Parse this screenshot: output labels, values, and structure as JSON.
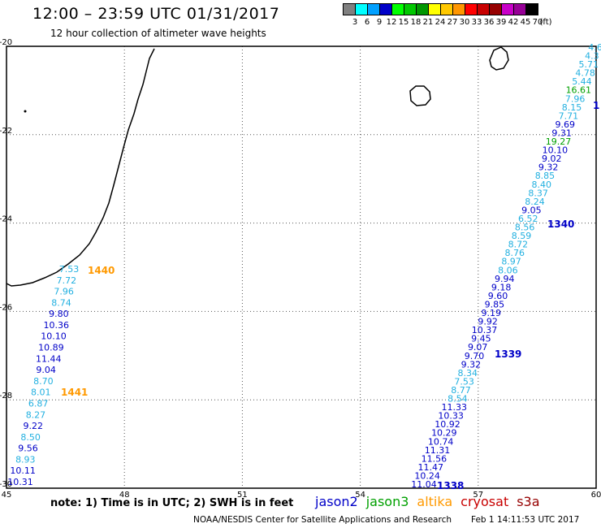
{
  "header": {
    "title": "12:00 – 23:59 UTC 01/31/2017",
    "subtitle": "12 hour collection of altimeter wave heights"
  },
  "legend": {
    "unit": "(ft)",
    "bins": [
      {
        "label": "3",
        "color": "#808080"
      },
      {
        "label": "6",
        "color": "#00ffff"
      },
      {
        "label": "9",
        "color": "#00a0ff"
      },
      {
        "label": "12",
        "color": "#0000c8"
      },
      {
        "label": "15",
        "color": "#00ff00"
      },
      {
        "label": "18",
        "color": "#00c800"
      },
      {
        "label": "21",
        "color": "#009600"
      },
      {
        "label": "24",
        "color": "#ffff00"
      },
      {
        "label": "27",
        "color": "#ffc800"
      },
      {
        "label": "30",
        "color": "#ff9600"
      },
      {
        "label": "33",
        "color": "#ff0000"
      },
      {
        "label": "36",
        "color": "#c80000"
      },
      {
        "label": "39",
        "color": "#960000"
      },
      {
        "label": "42",
        "color": "#c800c8"
      },
      {
        "label": "45",
        "color": "#960096"
      },
      {
        "label": "70",
        "color": "#000000"
      }
    ]
  },
  "axes": {
    "lon_ticks": [
      "45",
      "48",
      "51",
      "54",
      "57",
      "60"
    ],
    "lat_ticks": [
      "-20",
      "-22",
      "-24",
      "-26",
      "-28",
      "-30"
    ],
    "lon_range": [
      45,
      60
    ],
    "lat_range": [
      -20,
      -30
    ]
  },
  "colors": {
    "jason2": "#0000c8",
    "jason3": "#00a000",
    "altika": "#ff9900",
    "cryosat": "#c80000",
    "s3a": "#960000",
    "light": "#22b0e0",
    "coast": "#000000"
  },
  "tracks": {
    "left": {
      "labels": [
        {
          "text": "7.53",
          "c": "light"
        },
        {
          "text": "7.72",
          "c": "light"
        },
        {
          "text": "7.96",
          "c": "light"
        },
        {
          "text": "8.74",
          "c": "light"
        },
        {
          "text": "9.80",
          "c": "jason2"
        },
        {
          "text": "10.36",
          "c": "jason2"
        },
        {
          "text": "10.10",
          "c": "jason2"
        },
        {
          "text": "10.89",
          "c": "jason2"
        },
        {
          "text": "11.44",
          "c": "jason2"
        },
        {
          "text": "9.04",
          "c": "jason2"
        },
        {
          "text": "8.70",
          "c": "light"
        },
        {
          "text": "8.01",
          "c": "light"
        },
        {
          "text": "6.87",
          "c": "light"
        },
        {
          "text": "8.27",
          "c": "light"
        },
        {
          "text": "9.22",
          "c": "jason2"
        },
        {
          "text": "8.50",
          "c": "light"
        },
        {
          "text": "9.56",
          "c": "jason2"
        },
        {
          "text": "8.93",
          "c": "light"
        },
        {
          "text": "10.11",
          "c": "jason2"
        },
        {
          "text": "10.31",
          "c": "jason2"
        }
      ],
      "pass_labels": [
        {
          "text": "1440",
          "c": "altika"
        },
        {
          "text": "1441",
          "c": "altika"
        }
      ]
    },
    "right": {
      "labels": [
        {
          "text": "4.6",
          "c": "light"
        },
        {
          "text": "4.3",
          "c": "light"
        },
        {
          "text": "5.71",
          "c": "light"
        },
        {
          "text": "4.78",
          "c": "light"
        },
        {
          "text": "5.44",
          "c": "light"
        },
        {
          "text": "16.61",
          "c": "jason3"
        },
        {
          "text": "7.96",
          "c": "light"
        },
        {
          "text": "8.15",
          "c": "light"
        },
        {
          "text": "7.71",
          "c": "light"
        },
        {
          "text": "9.69",
          "c": "jason2"
        },
        {
          "text": "9.31",
          "c": "jason2"
        },
        {
          "text": "19.27",
          "c": "jason3"
        },
        {
          "text": "10.10",
          "c": "jason2"
        },
        {
          "text": "9.02",
          "c": "jason2"
        },
        {
          "text": "9.32",
          "c": "jason2"
        },
        {
          "text": "8.85",
          "c": "light"
        },
        {
          "text": "8.40",
          "c": "light"
        },
        {
          "text": "8.37",
          "c": "light"
        },
        {
          "text": "8.24",
          "c": "light"
        },
        {
          "text": "9.05",
          "c": "jason2"
        },
        {
          "text": "6.52",
          "c": "light"
        },
        {
          "text": "8.56",
          "c": "light"
        },
        {
          "text": "8.59",
          "c": "light"
        },
        {
          "text": "8.72",
          "c": "light"
        },
        {
          "text": "8.76",
          "c": "light"
        },
        {
          "text": "8.97",
          "c": "light"
        },
        {
          "text": "8.06",
          "c": "light"
        },
        {
          "text": "9.94",
          "c": "jason2"
        },
        {
          "text": "9.18",
          "c": "jason2"
        },
        {
          "text": "9.60",
          "c": "jason2"
        },
        {
          "text": "9.85",
          "c": "jason2"
        },
        {
          "text": "9.19",
          "c": "jason2"
        },
        {
          "text": "9.92",
          "c": "jason2"
        },
        {
          "text": "10.37",
          "c": "jason2"
        },
        {
          "text": "9.45",
          "c": "jason2"
        },
        {
          "text": "9.07",
          "c": "jason2"
        },
        {
          "text": "9.70",
          "c": "jason2"
        },
        {
          "text": "9.32",
          "c": "jason2"
        },
        {
          "text": "8.34",
          "c": "light"
        },
        {
          "text": "7.53",
          "c": "light"
        },
        {
          "text": "8.77",
          "c": "light"
        },
        {
          "text": "8.54",
          "c": "light"
        },
        {
          "text": "11.33",
          "c": "jason2"
        },
        {
          "text": "10.33",
          "c": "jason2"
        },
        {
          "text": "10.92",
          "c": "jason2"
        },
        {
          "text": "10.29",
          "c": "jason2"
        },
        {
          "text": "10.74",
          "c": "jason2"
        },
        {
          "text": "11.31",
          "c": "jason2"
        },
        {
          "text": "11.56",
          "c": "jason2"
        },
        {
          "text": "11.47",
          "c": "jason2"
        },
        {
          "text": "10.24",
          "c": "jason2"
        },
        {
          "text": "11.04",
          "c": "jason2"
        }
      ],
      "pass_labels": [
        {
          "text": "1340",
          "c": "jason2"
        },
        {
          "text": "1339",
          "c": "jason2"
        },
        {
          "text": "1338",
          "c": "jason2"
        },
        {
          "text": "1",
          "c": "jason2"
        }
      ]
    }
  },
  "footer": {
    "note": "note:  1) Time is in UTC;  2) SWH is in feet",
    "satellites": [
      {
        "name": "jason2",
        "c": "jason2"
      },
      {
        "name": "jason3",
        "c": "jason3"
      },
      {
        "name": "altika",
        "c": "altika"
      },
      {
        "name": "cryosat",
        "c": "cryosat"
      },
      {
        "name": "s3a",
        "c": "s3a"
      }
    ],
    "credit": "NOAA/NESDIS Center for Satellite Applications and Research",
    "timestamp": "Feb  1 14:11:53 UTC 2017"
  }
}
